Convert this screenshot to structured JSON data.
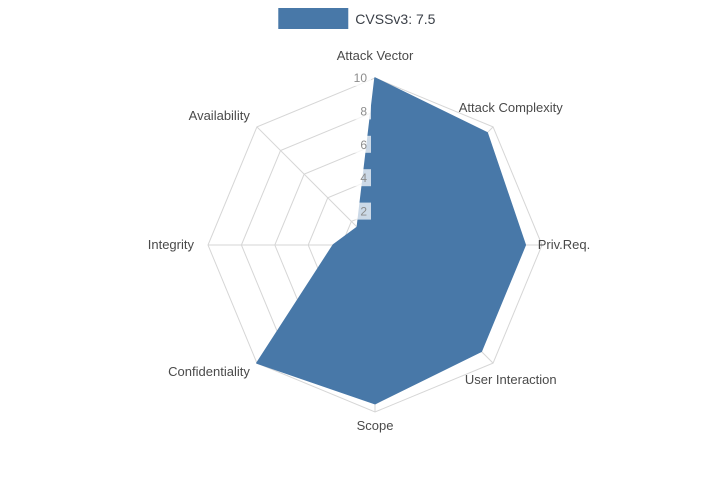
{
  "legend": {
    "label": "CVSSv3: 7.5",
    "swatch_color": "#4878a8"
  },
  "chart_data": {
    "type": "radar",
    "title": "CVSSv3: 7.5",
    "categories": [
      "Attack Vector",
      "Attack Complexity",
      "Priv.Req.",
      "User Interaction",
      "Scope",
      "Confidentiality",
      "Integrity",
      "Availability"
    ],
    "series": [
      {
        "name": "CVSSv3: 7.5",
        "values": [
          10,
          9.5,
          9,
          9,
          9.5,
          10,
          2.5,
          1.5
        ]
      }
    ],
    "radial_ticks": [
      2,
      4,
      6,
      8,
      10
    ],
    "rlim": [
      0,
      10
    ],
    "grid": true,
    "legend_position": "top-center",
    "fill_color": "#4878a8",
    "grid_color": "#d6d6d6",
    "label_color": "#4a4a4a",
    "tick_color": "#8c8c8c",
    "background_color": "#ffffff"
  }
}
